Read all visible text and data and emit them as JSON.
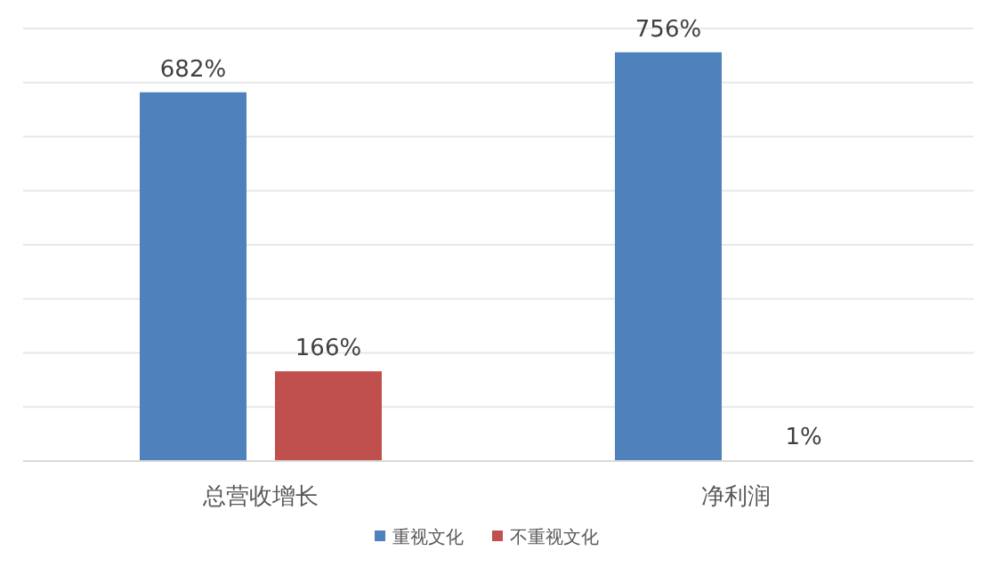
{
  "chart_data": {
    "type": "bar",
    "categories": [
      "总营收增长",
      "净利润"
    ],
    "series": [
      {
        "name": "重视文化",
        "color": "#4f81bd",
        "values": [
          682,
          756
        ],
        "value_labels": [
          "682%",
          "756%"
        ]
      },
      {
        "name": "不重视文化",
        "color": "#c0504d",
        "values": [
          166,
          1
        ],
        "value_labels": [
          "166%",
          "1%"
        ]
      }
    ],
    "ylim": [
      0,
      800
    ],
    "yticks": [
      {
        "value": 0,
        "label": null
      },
      {
        "value": 100,
        "label": null
      },
      {
        "value": 200,
        "label": null
      },
      {
        "value": 300,
        "label": null
      },
      {
        "value": 400,
        "label": null
      },
      {
        "value": 500,
        "label": null
      },
      {
        "value": 600,
        "label": null
      },
      {
        "value": 700,
        "label": null
      },
      {
        "value": 800,
        "label": null
      }
    ],
    "grid": "y",
    "legend": "bottom",
    "tick_labels": "x"
  }
}
